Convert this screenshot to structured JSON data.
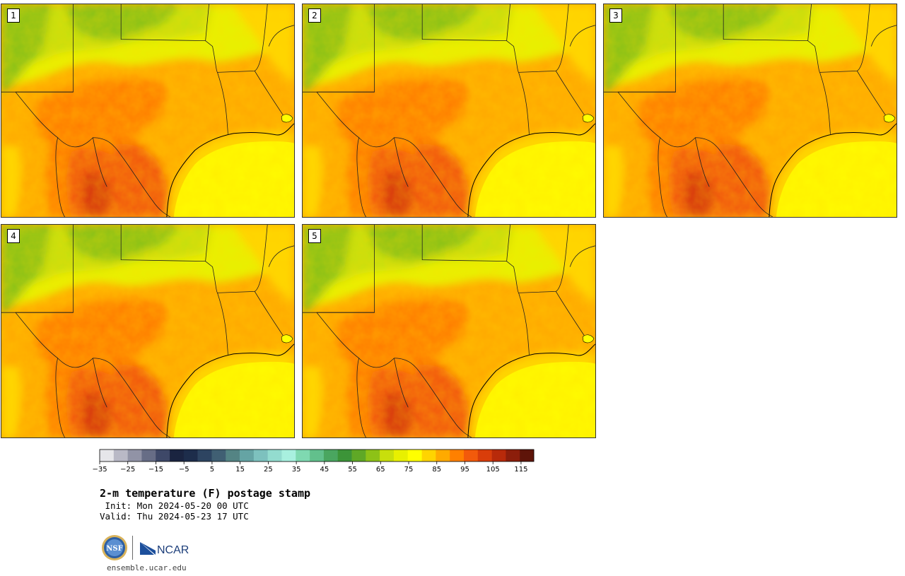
{
  "panels": [
    {
      "label": "1"
    },
    {
      "label": "2"
    },
    {
      "label": "3"
    },
    {
      "label": "4"
    },
    {
      "label": "5"
    }
  ],
  "colorbar": {
    "ticks": [
      "−35",
      "−25",
      "−15",
      "−5",
      "5",
      "15",
      "25",
      "35",
      "45",
      "55",
      "65",
      "75",
      "85",
      "95",
      "105",
      "115"
    ],
    "colors": [
      "#e6e6ea",
      "#b9b9c6",
      "#9193a6",
      "#676d86",
      "#3e4868",
      "#1a2440",
      "#1d2d4b",
      "#2d4461",
      "#405f73",
      "#548484",
      "#65a4a4",
      "#7dc1be",
      "#93dccf",
      "#a8f0df",
      "#7fd9b1",
      "#62c08c",
      "#4aa660",
      "#3c9438",
      "#5fa826",
      "#8dc217",
      "#c8df0c",
      "#e8f000",
      "#ffff00",
      "#ffd400",
      "#ffaa00",
      "#ff8000",
      "#f25a0b",
      "#d93d0a",
      "#b82a0a",
      "#8c1e0b",
      "#5e1409"
    ]
  },
  "title": {
    "main": "2-m temperature (F) postage stamp",
    "init": " Init: Mon 2024-05-20 00 UTC",
    "valid": "Valid: Thu 2024-05-23 17 UTC"
  },
  "logos": {
    "nsf_text": "NSF",
    "ncar_text": "NCAR"
  },
  "footer": {
    "url": "ensemble.ucar.edu"
  }
}
